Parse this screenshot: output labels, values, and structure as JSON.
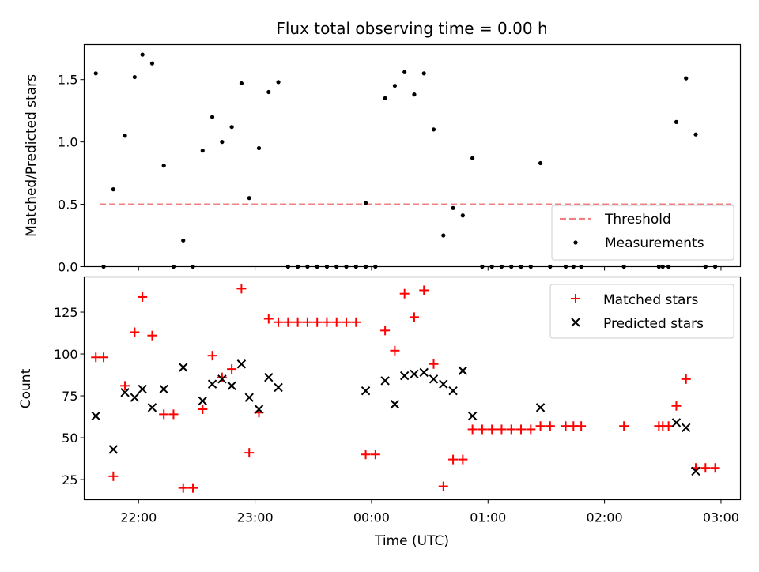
{
  "chart_data": [
    {
      "type": "scatter",
      "title": "Flux total observing time = 0.00 h",
      "xlabel": "",
      "ylabel": "Matched/Predicted stars",
      "ylim": [
        0,
        1.78
      ],
      "yticks": [
        "0.0",
        "0.5",
        "1.0",
        "1.5"
      ],
      "grid": false,
      "legend_position": "lower-right",
      "threshold": {
        "name": "Threshold",
        "value": 0.5,
        "x_start": "21:40",
        "x_end": "03:05",
        "color": "#f08080"
      },
      "series": [
        {
          "name": "Measurements",
          "color": "#000000",
          "points": [
            [
              "21:38",
              1.55
            ],
            [
              "21:42",
              0.0
            ],
            [
              "21:47",
              0.62
            ],
            [
              "21:53",
              1.05
            ],
            [
              "21:58",
              1.52
            ],
            [
              "22:02",
              1.7
            ],
            [
              "22:07",
              1.63
            ],
            [
              "22:13",
              0.81
            ],
            [
              "22:18",
              0.0
            ],
            [
              "22:23",
              0.21
            ],
            [
              "22:28",
              0.0
            ],
            [
              "22:33",
              0.93
            ],
            [
              "22:38",
              1.2
            ],
            [
              "22:43",
              1.0
            ],
            [
              "22:48",
              1.12
            ],
            [
              "22:53",
              1.47
            ],
            [
              "22:57",
              0.55
            ],
            [
              "23:02",
              0.95
            ],
            [
              "23:07",
              1.4
            ],
            [
              "23:12",
              1.48
            ],
            [
              "23:17",
              0.0
            ],
            [
              "23:22",
              0.0
            ],
            [
              "23:27",
              0.0
            ],
            [
              "23:32",
              0.0
            ],
            [
              "23:37",
              0.0
            ],
            [
              "23:42",
              0.0
            ],
            [
              "23:47",
              0.0
            ],
            [
              "23:52",
              0.0
            ],
            [
              "23:57",
              0.0
            ],
            [
              "23:57",
              0.51
            ],
            [
              "00:02",
              0.0
            ],
            [
              "00:07",
              1.35
            ],
            [
              "00:12",
              1.45
            ],
            [
              "00:17",
              1.56
            ],
            [
              "00:22",
              1.38
            ],
            [
              "00:27",
              1.55
            ],
            [
              "00:32",
              1.1
            ],
            [
              "00:37",
              0.25
            ],
            [
              "00:42",
              0.47
            ],
            [
              "00:47",
              0.41
            ],
            [
              "00:52",
              0.87
            ],
            [
              "00:57",
              0.0
            ],
            [
              "01:02",
              0.0
            ],
            [
              "01:07",
              0.0
            ],
            [
              "01:12",
              0.0
            ],
            [
              "01:17",
              0.0
            ],
            [
              "01:22",
              0.0
            ],
            [
              "01:27",
              0.83
            ],
            [
              "01:32",
              0.0
            ],
            [
              "01:40",
              0.0
            ],
            [
              "01:44",
              0.0
            ],
            [
              "01:48",
              0.0
            ],
            [
              "02:10",
              0.0
            ],
            [
              "02:28",
              0.0
            ],
            [
              "02:30",
              0.0
            ],
            [
              "02:33",
              0.0
            ],
            [
              "02:37",
              1.16
            ],
            [
              "02:42",
              1.51
            ],
            [
              "02:47",
              1.06
            ],
            [
              "02:52",
              0.0
            ],
            [
              "02:57",
              0.0
            ]
          ]
        }
      ]
    },
    {
      "type": "scatter",
      "title": "",
      "xlabel": "Time (UTC)",
      "ylabel": "Count",
      "ylim": [
        13,
        146
      ],
      "yticks": [
        "25",
        "50",
        "75",
        "100",
        "125"
      ],
      "xticks": [
        "22:00",
        "23:00",
        "00:00",
        "01:00",
        "02:00",
        "03:00"
      ],
      "xlim": [
        "21:32",
        "03:10"
      ],
      "grid": false,
      "legend_position": "top-right",
      "series": [
        {
          "name": "Matched stars",
          "marker": "plus",
          "color": "#ff0000",
          "points": [
            [
              "21:38",
              98
            ],
            [
              "21:42",
              98
            ],
            [
              "21:47",
              27
            ],
            [
              "21:53",
              81
            ],
            [
              "21:58",
              113
            ],
            [
              "22:02",
              134
            ],
            [
              "22:07",
              111
            ],
            [
              "22:13",
              64
            ],
            [
              "22:18",
              64
            ],
            [
              "22:23",
              20
            ],
            [
              "22:28",
              20
            ],
            [
              "22:33",
              67
            ],
            [
              "22:38",
              99
            ],
            [
              "22:43",
              86
            ],
            [
              "22:48",
              91
            ],
            [
              "22:53",
              139
            ],
            [
              "22:57",
              41
            ],
            [
              "23:02",
              65
            ],
            [
              "23:07",
              121
            ],
            [
              "23:12",
              119
            ],
            [
              "23:17",
              119
            ],
            [
              "23:22",
              119
            ],
            [
              "23:27",
              119
            ],
            [
              "23:32",
              119
            ],
            [
              "23:37",
              119
            ],
            [
              "23:42",
              119
            ],
            [
              "23:47",
              119
            ],
            [
              "23:52",
              119
            ],
            [
              "23:57",
              40
            ],
            [
              "00:02",
              40
            ],
            [
              "00:07",
              114
            ],
            [
              "00:12",
              102
            ],
            [
              "00:17",
              136
            ],
            [
              "00:22",
              122
            ],
            [
              "00:27",
              138
            ],
            [
              "00:32",
              94
            ],
            [
              "00:37",
              21
            ],
            [
              "00:42",
              37
            ],
            [
              "00:47",
              37
            ],
            [
              "00:52",
              55
            ],
            [
              "00:57",
              55
            ],
            [
              "01:02",
              55
            ],
            [
              "01:07",
              55
            ],
            [
              "01:12",
              55
            ],
            [
              "01:17",
              55
            ],
            [
              "01:22",
              55
            ],
            [
              "01:27",
              57
            ],
            [
              "01:32",
              57
            ],
            [
              "01:40",
              57
            ],
            [
              "01:44",
              57
            ],
            [
              "01:48",
              57
            ],
            [
              "02:10",
              57
            ],
            [
              "02:28",
              57
            ],
            [
              "02:30",
              57
            ],
            [
              "02:33",
              57
            ],
            [
              "02:37",
              69
            ],
            [
              "02:42",
              85
            ],
            [
              "02:47",
              32
            ],
            [
              "02:52",
              32
            ],
            [
              "02:57",
              32
            ]
          ]
        },
        {
          "name": "Predicted stars",
          "marker": "x",
          "color": "#000000",
          "points": [
            [
              "21:38",
              63
            ],
            [
              "21:47",
              43
            ],
            [
              "21:53",
              77
            ],
            [
              "21:58",
              74
            ],
            [
              "22:02",
              79
            ],
            [
              "22:07",
              68
            ],
            [
              "22:13",
              79
            ],
            [
              "22:23",
              92
            ],
            [
              "22:33",
              72
            ],
            [
              "22:38",
              82
            ],
            [
              "22:43",
              85
            ],
            [
              "22:48",
              81
            ],
            [
              "22:53",
              94
            ],
            [
              "22:57",
              74
            ],
            [
              "23:02",
              67
            ],
            [
              "23:07",
              86
            ],
            [
              "23:12",
              80
            ],
            [
              "23:57",
              78
            ],
            [
              "00:07",
              84
            ],
            [
              "00:12",
              70
            ],
            [
              "00:17",
              87
            ],
            [
              "00:22",
              88
            ],
            [
              "00:27",
              89
            ],
            [
              "00:32",
              85
            ],
            [
              "00:37",
              82
            ],
            [
              "00:42",
              78
            ],
            [
              "00:47",
              90
            ],
            [
              "00:52",
              63
            ],
            [
              "01:27",
              68
            ],
            [
              "02:37",
              59
            ],
            [
              "02:42",
              56
            ],
            [
              "02:47",
              30
            ]
          ]
        }
      ]
    }
  ]
}
